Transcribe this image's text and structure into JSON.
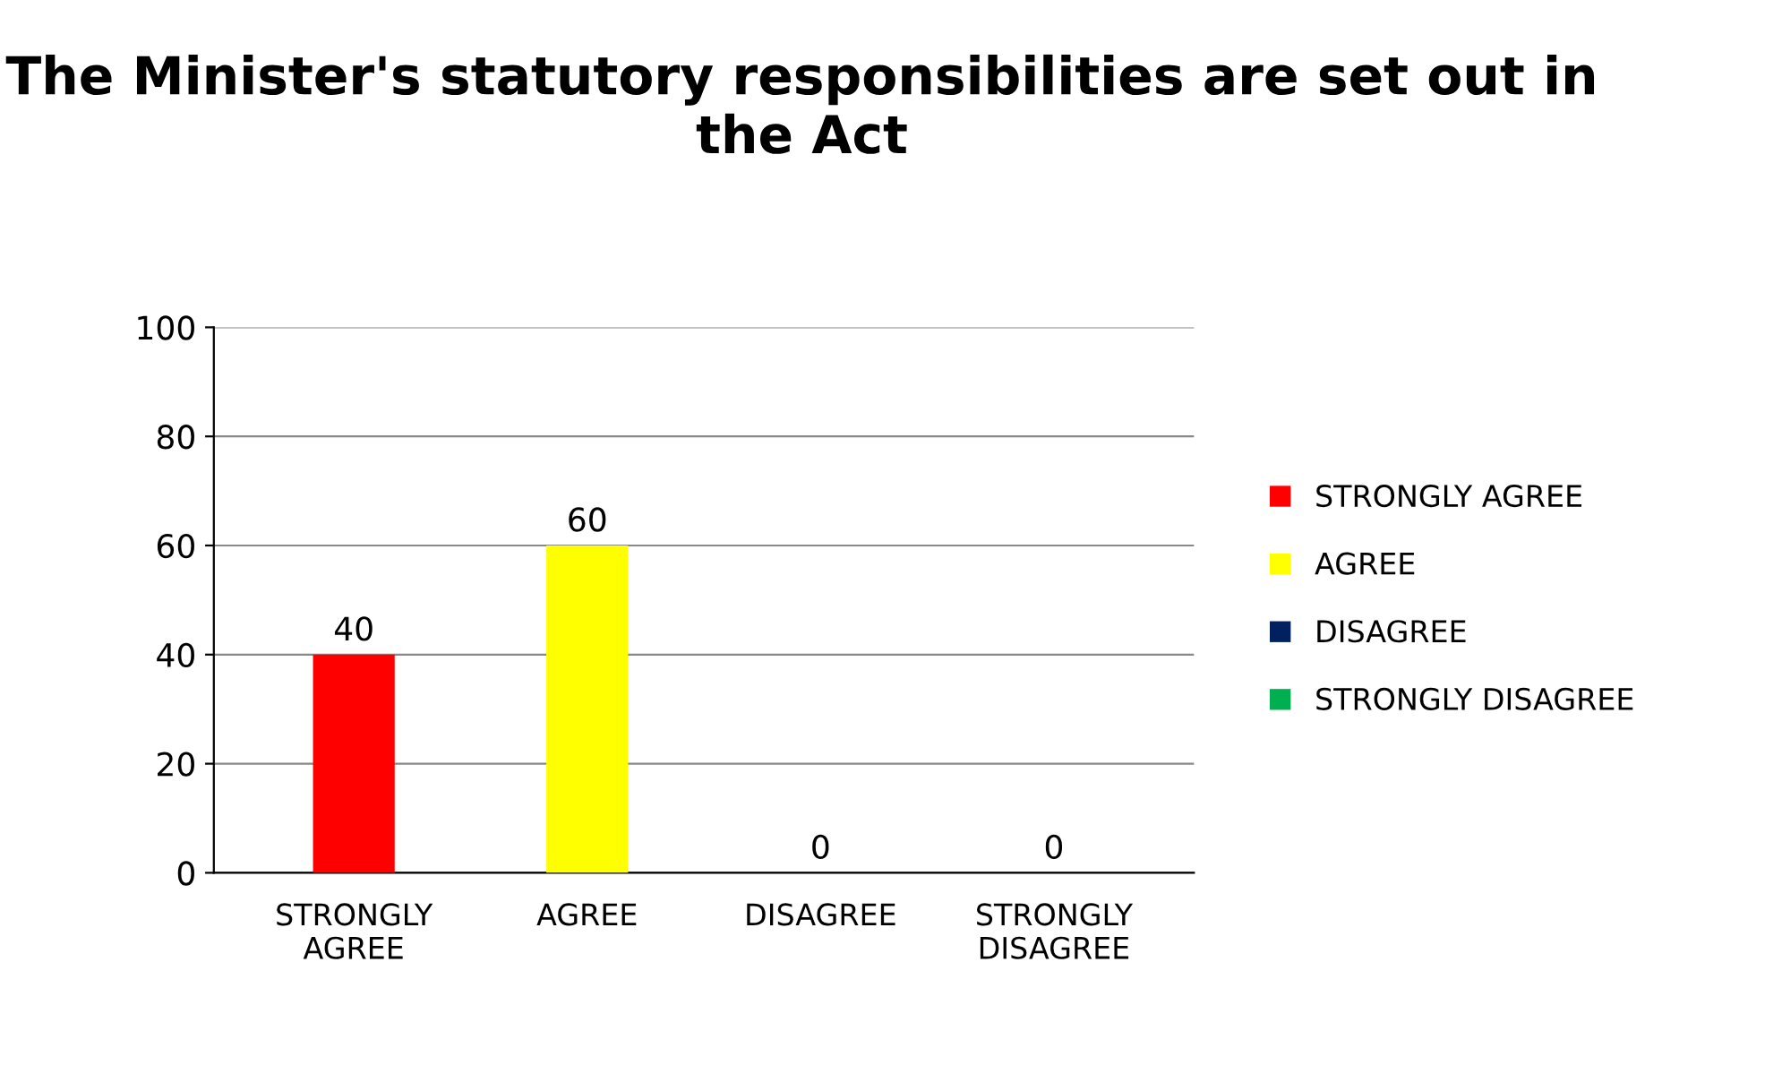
{
  "chart_data": {
    "type": "bar",
    "title": "The Minister's statutory responsibilities are set out in the Act",
    "categories": [
      "STRONGLY AGREE",
      "AGREE",
      "DISAGREE",
      "STRONGLY DISAGREE"
    ],
    "series": [
      {
        "name": "STRONGLY AGREE",
        "color": "#ff0000",
        "values": [
          40,
          null,
          null,
          null
        ]
      },
      {
        "name": "AGREE",
        "color": "#ffff00",
        "values": [
          null,
          60,
          null,
          null
        ]
      },
      {
        "name": "DISAGREE",
        "color": "#002060",
        "values": [
          null,
          null,
          0,
          null
        ]
      },
      {
        "name": "STRONGLY DISAGREE",
        "color": "#00b050",
        "values": [
          null,
          null,
          null,
          0
        ]
      }
    ],
    "ylim": [
      0,
      100
    ],
    "yticks": [
      0,
      20,
      40,
      60,
      80,
      100
    ],
    "grid": "y",
    "legend": "right",
    "data_labels": true
  }
}
